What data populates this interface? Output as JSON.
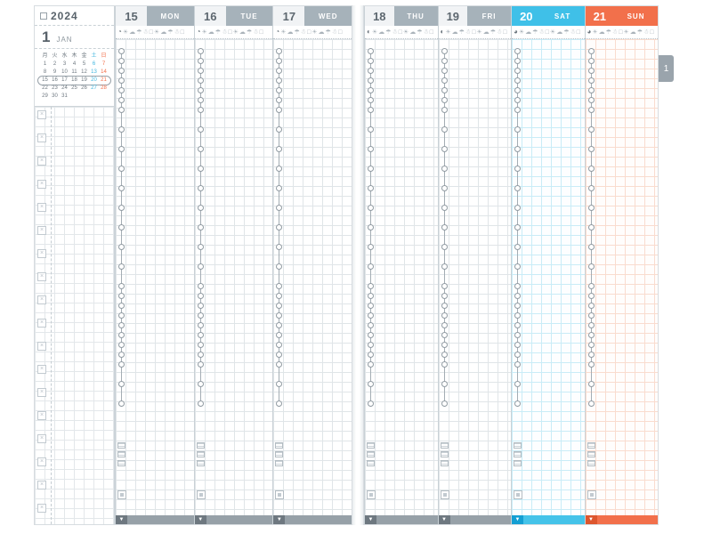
{
  "colors": {
    "saturday": "#3fc0e8",
    "sunday": "#f2704b",
    "weekday_header": "#a6b2ba"
  },
  "sidebar": {
    "year": "2024",
    "month_number": "1",
    "month_abbr": "JAN",
    "mini_calendar": {
      "dow": [
        "月",
        "火",
        "水",
        "木",
        "金",
        "土",
        "日"
      ],
      "weeks": [
        [
          "1",
          "2",
          "3",
          "4",
          "5",
          "6",
          "7"
        ],
        [
          "8",
          "9",
          "10",
          "11",
          "12",
          "13",
          "14"
        ],
        [
          "15",
          "16",
          "17",
          "18",
          "19",
          "20",
          "21"
        ],
        [
          "22",
          "23",
          "24",
          "25",
          "26",
          "27",
          "28"
        ],
        [
          "29",
          "30",
          "31",
          "",
          "",
          "",
          ""
        ]
      ],
      "highlighted_week_index": 2
    },
    "task_count": 18
  },
  "week": {
    "days": [
      {
        "date": "15",
        "dow": "MON",
        "type": "weekday",
        "moon": "◔",
        "page": "left"
      },
      {
        "date": "16",
        "dow": "TUE",
        "type": "weekday",
        "moon": "◔",
        "page": "left"
      },
      {
        "date": "17",
        "dow": "WED",
        "type": "weekday",
        "moon": "◔",
        "page": "left"
      },
      {
        "date": "18",
        "dow": "THU",
        "type": "weekday",
        "moon": "◐",
        "page": "right"
      },
      {
        "date": "19",
        "dow": "FRI",
        "type": "weekday",
        "moon": "◐",
        "page": "right"
      },
      {
        "date": "20",
        "dow": "SAT",
        "type": "saturday",
        "moon": "◕",
        "page": "right"
      },
      {
        "date": "21",
        "dow": "SUN",
        "type": "sunday",
        "moon": "◕",
        "page": "right"
      }
    ]
  },
  "weather_icons": [
    {
      "name": "sun-icon",
      "glyph": "☀"
    },
    {
      "name": "cloud-icon",
      "glyph": "☁"
    },
    {
      "name": "umbrella-icon",
      "glyph": "☂"
    },
    {
      "name": "snow-icon",
      "glyph": "☃"
    },
    {
      "name": "temperature-box-icon",
      "glyph": "□"
    },
    {
      "name": "sun-icon",
      "glyph": "☀"
    },
    {
      "name": "cloud-icon",
      "glyph": "☁"
    },
    {
      "name": "umbrella-icon",
      "glyph": "☂"
    },
    {
      "name": "snow-icon",
      "glyph": "☃"
    },
    {
      "name": "temperature-box-icon",
      "glyph": "□"
    }
  ],
  "month_tab": "1"
}
